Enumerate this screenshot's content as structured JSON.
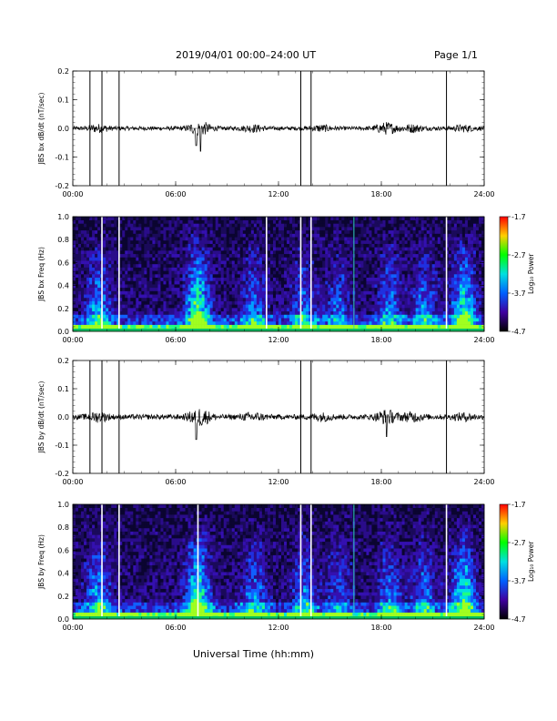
{
  "header": {
    "title": "2019/04/01   00:00–24:00 UT",
    "page": "Page 1/1"
  },
  "footer": {
    "xlabel": "Universal Time (hh:mm)"
  },
  "colorbar": {
    "ticks": [
      "-1.7",
      "-2.7",
      "-3.7",
      "-4.7"
    ],
    "label": "Log₁₀ Power",
    "colors": [
      "#ff0000",
      "#ffd000",
      "#00ff00",
      "#00e0e0",
      "#0060ff",
      "#4000a0",
      "#000000"
    ]
  },
  "chart_data": [
    {
      "type": "line",
      "ylabel": "JBS bx dB/dt (nT/sec)",
      "x_range": [
        0,
        24
      ],
      "x_ticks": [
        "00:00",
        "06:00",
        "12:00",
        "18:00",
        "24:00"
      ],
      "ylim": [
        -0.2,
        0.2
      ],
      "y_ticks": [
        "0.2",
        "0.1",
        "0.0",
        "-0.1",
        "-0.2"
      ],
      "baseline": 0.0,
      "noise_amplitude": 0.012,
      "spikes_hours": [
        1.0,
        1.7,
        2.7,
        13.3,
        13.9,
        21.8
      ],
      "dips": [
        {
          "hour": 7.45,
          "value": -0.08
        },
        {
          "hour": 7.2,
          "value": -0.06
        }
      ]
    },
    {
      "type": "heatmap",
      "ylabel": "JBS bx Freq (Hz)",
      "x_range": [
        0,
        24
      ],
      "x_ticks": [
        "00:00",
        "06:00",
        "12:00",
        "18:00",
        "24:00"
      ],
      "ylim": [
        0,
        1.0
      ],
      "y_ticks": [
        "1.0",
        "0.8",
        "0.6",
        "0.4",
        "0.2",
        "0.0"
      ],
      "color_range": [
        -4.7,
        -1.7
      ],
      "white_lines_hours": [
        1.7,
        2.7,
        11.3,
        13.3,
        13.9,
        21.8
      ],
      "cyan_lines_hours": [
        16.4
      ]
    },
    {
      "type": "line",
      "ylabel": "JBS by dB/dt (nT/sec)",
      "x_range": [
        0,
        24
      ],
      "x_ticks": [
        "00:00",
        "06:00",
        "12:00",
        "18:00",
        "24:00"
      ],
      "ylim": [
        -0.2,
        0.2
      ],
      "y_ticks": [
        "0.2",
        "0.1",
        "0.0",
        "-0.1",
        "-0.2"
      ],
      "baseline": 0.0,
      "noise_amplitude": 0.015,
      "spikes_hours": [
        1.0,
        1.7,
        2.7,
        13.3,
        13.9,
        21.8
      ],
      "dips": [
        {
          "hour": 7.2,
          "value": -0.08
        },
        {
          "hour": 18.3,
          "value": -0.07
        }
      ]
    },
    {
      "type": "heatmap",
      "ylabel": "JBS by Freq (Hz)",
      "x_range": [
        0,
        24
      ],
      "x_ticks": [
        "00:00",
        "06:00",
        "12:00",
        "18:00",
        "24:00"
      ],
      "ylim": [
        0,
        1.0
      ],
      "y_ticks": [
        "1.0",
        "0.8",
        "0.6",
        "0.4",
        "0.2",
        "0.0"
      ],
      "color_range": [
        -4.7,
        -1.7
      ],
      "white_lines_hours": [
        1.7,
        2.7,
        7.3,
        13.3,
        13.9,
        21.8
      ],
      "cyan_lines_hours": [
        16.4
      ]
    }
  ]
}
